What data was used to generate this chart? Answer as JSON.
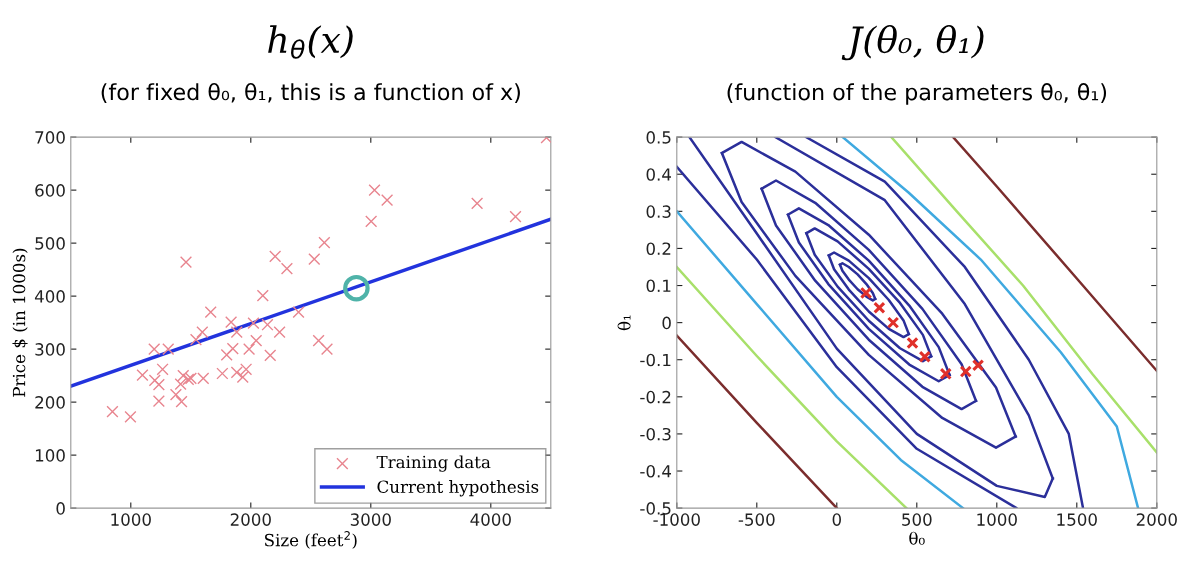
{
  "chart_data": [
    {
      "type": "scatter",
      "title": "h$_{θ}$(x)",
      "subtitle": "(for fixed θ₀, θ₁, this is a function of x)",
      "xlabel": "Size (feet$^{2}$)",
      "ylabel": "Price $ (in 1000s)",
      "xlim": [
        500,
        4500
      ],
      "xticks": [
        1000,
        2000,
        3000,
        4000
      ],
      "ylim": [
        0,
        700
      ],
      "yticks": [
        0,
        100,
        200,
        300,
        400,
        500,
        600,
        700
      ],
      "legend": "bottom right",
      "series": [
        {
          "name": "Training data",
          "type": "scatter",
          "marker": "cross",
          "color": "#e8858f",
          "x": [
            847,
            997,
            1097,
            1195,
            1200,
            1234,
            1234,
            1265,
            1312,
            1376,
            1415,
            1423,
            1437,
            1460,
            1479,
            1501,
            1543,
            1596,
            1604,
            1666,
            1763,
            1799,
            1836,
            1850,
            1883,
            1883,
            1933,
            1961,
            1986,
            2022,
            2045,
            2100,
            2139,
            2162,
            2203,
            2240,
            2301,
            2398,
            2529,
            2565,
            2613,
            2635,
            3003,
            3031,
            3136,
            3886,
            4206,
            4464
          ],
          "values": [
            182,
            172,
            251,
            300,
            241,
            233,
            202,
            262,
            300,
            214,
            234,
            201,
            250,
            464,
            243,
            245,
            318,
            332,
            245,
            370,
            254,
            289,
            351,
            301,
            332,
            256,
            247,
            262,
            300,
            349,
            316,
            401,
            346,
            288,
            475,
            332,
            452,
            370,
            470,
            316,
            501,
            300,
            541,
            600,
            581,
            575,
            550,
            699
          ]
        },
        {
          "name": "Current hypothesis",
          "type": "line",
          "marker": "none",
          "color": "#2233dd",
          "x": [
            500,
            4500
          ],
          "values": [
            230,
            545
          ]
        },
        {
          "type": "scatter",
          "marker": "circle",
          "color": "#4fb3a9",
          "x": [
            2880
          ],
          "values": [
            415
          ]
        }
      ]
    },
    {
      "type": "line",
      "title": "J(θ₀, θ₁)",
      "subtitle": "(function of the parameters θ₀, θ₁)",
      "xlabel": "θ₀",
      "ylabel": "θ₁",
      "xlim": [
        -1000,
        2000
      ],
      "xticks": [
        -1000,
        -500,
        0,
        500,
        1000,
        1500,
        2000
      ],
      "ylim": [
        -0.5,
        0.5
      ],
      "yticks": [
        -0.5,
        -0.4,
        -0.3,
        -0.2,
        -0.1,
        0,
        0.1,
        0.2,
        0.3,
        0.4,
        0.5
      ],
      "series": [
        {
          "color": "#7b2d2d",
          "x": [
            -1000,
            -500,
            0
          ],
          "values": [
            -0.035,
            -0.27,
            -0.5
          ]
        },
        {
          "color": "#7b2d2d",
          "x": [
            727,
            1000,
            1500,
            2000
          ],
          "values": [
            0.5,
            0.367,
            0.119,
            -0.13
          ]
        },
        {
          "color": "#a8e06a",
          "x": [
            -1000,
            -500,
            0,
            435
          ],
          "values": [
            0.15,
            -0.09,
            -0.32,
            -0.5
          ]
        },
        {
          "color": "#a8e06a",
          "x": [
            341,
            750,
            1164,
            1600,
            2000
          ],
          "values": [
            0.5,
            0.3,
            0.1,
            -0.14,
            -0.35
          ]
        },
        {
          "color": "#3fa9e0",
          "x": [
            -1000,
            -500,
            0,
            400,
            789
          ],
          "values": [
            0.3,
            0.05,
            -0.2,
            -0.37,
            -0.5
          ]
        },
        {
          "color": "#3fa9e0",
          "x": [
            37,
            450,
            900,
            1400,
            1750,
            1883
          ],
          "values": [
            0.5,
            0.35,
            0.17,
            -0.08,
            -0.28,
            -0.5
          ]
        },
        {
          "color": "#2b2f9a",
          "x": [
            -1000,
            -500,
            0,
            500,
            1123
          ],
          "values": [
            0.42,
            0.17,
            -0.12,
            -0.34,
            -0.5
          ]
        },
        {
          "color": "#2b2f9a",
          "x": [
            -192,
            300,
            800,
            1200,
            1450,
            1539
          ],
          "values": [
            0.5,
            0.38,
            0.15,
            -0.1,
            -0.3,
            -0.5
          ]
        },
        {
          "color": "#2b2f9a",
          "x": [
            -921,
            -500,
            0,
            500,
            1000,
            1300,
            1350
          ],
          "values": [
            0.5,
            0.24,
            -0.07,
            -0.3,
            -0.44,
            -0.47,
            -0.42
          ]
        },
        {
          "color": "#2b2f9a",
          "x": [
            1350,
            1200,
            800,
            300,
            -384
          ],
          "values": [
            -0.42,
            -0.25,
            0.05,
            0.33,
            0.5
          ]
        },
        {
          "color": "#2b2f9a",
          "x": [
            1118,
            995,
            659,
            200,
            -259,
            -595,
            -718
          ],
          "values": [
            -0.307,
            -0.175,
            0.024,
            0.237,
            0.407,
            0.487,
            0.457
          ]
        },
        {
          "color": "#2b2f9a",
          "x": [
            -718,
            -595,
            -259,
            200,
            659,
            995,
            1118
          ],
          "values": [
            0.457,
            0.325,
            0.126,
            -0.087,
            -0.257,
            -0.337,
            -0.307
          ]
        },
        {
          "color": "#2b2f9a",
          "x": [
            870,
            780,
            535,
            200,
            -135,
            -380,
            -470
          ],
          "values": [
            -0.211,
            -0.112,
            0.037,
            0.196,
            0.323,
            0.383,
            0.361
          ]
        },
        {
          "color": "#2b2f9a",
          "x": [
            -470,
            -380,
            -135,
            200,
            535,
            780,
            870
          ],
          "values": [
            0.361,
            0.262,
            0.113,
            -0.046,
            -0.173,
            -0.233,
            -0.211
          ]
        },
        {
          "color": "#2b2f9a",
          "x": [
            705,
            637,
            453,
            200,
            -53,
            -237,
            -305
          ],
          "values": [
            -0.141,
            -0.066,
            0.046,
            0.167,
            0.263,
            0.308,
            0.291
          ]
        },
        {
          "color": "#2b2f9a",
          "x": [
            -305,
            -237,
            -53,
            200,
            453,
            637,
            705
          ],
          "values": [
            0.291,
            0.216,
            0.104,
            -0.017,
            -0.113,
            -0.158,
            -0.141
          ]
        },
        {
          "color": "#2b2f9a",
          "x": [
            590,
            538,
            395,
            200,
            5,
            -138,
            -190
          ],
          "values": [
            -0.091,
            -0.033,
            0.053,
            0.145,
            0.219,
            0.254,
            0.241
          ]
        },
        {
          "color": "#2b2f9a",
          "x": [
            -190,
            -138,
            5,
            200,
            395,
            538,
            590
          ],
          "values": [
            0.241,
            0.183,
            0.097,
            0.005,
            -0.069,
            -0.104,
            -0.091
          ]
        },
        {
          "color": "#2b2f9a",
          "x": [
            450,
            417,
            325,
            200,
            75,
            -17,
            -50
          ],
          "values": [
            -0.031,
            0.006,
            0.061,
            0.12,
            0.167,
            0.189,
            0.181
          ]
        },
        {
          "color": "#2b2f9a",
          "x": [
            -50,
            -17,
            75,
            200,
            325,
            417,
            450
          ],
          "values": [
            0.181,
            0.144,
            0.089,
            0.03,
            -0.017,
            -0.039,
            -0.031
          ]
        },
        {
          "color": "#2b2f9a",
          "x": [
            240,
            225,
            185,
            130,
            75,
            35,
            20
          ],
          "values": [
            0.064,
            0.08,
            0.104,
            0.13,
            0.15,
            0.16,
            0.156
          ]
        },
        {
          "color": "#2b2f9a",
          "x": [
            20,
            35,
            75,
            130,
            185,
            225,
            240
          ],
          "values": [
            0.156,
            0.14,
            0.116,
            0.09,
            0.07,
            0.06,
            0.064
          ]
        },
        {
          "type": "scatter",
          "marker": "cross",
          "color": "#e0302a",
          "x": [
            183,
            266,
            352,
            473,
            550,
            681,
            806,
            883
          ],
          "values": [
            0.08,
            0.04,
            0,
            -0.055,
            -0.092,
            -0.138,
            -0.132,
            -0.115
          ]
        }
      ]
    }
  ]
}
